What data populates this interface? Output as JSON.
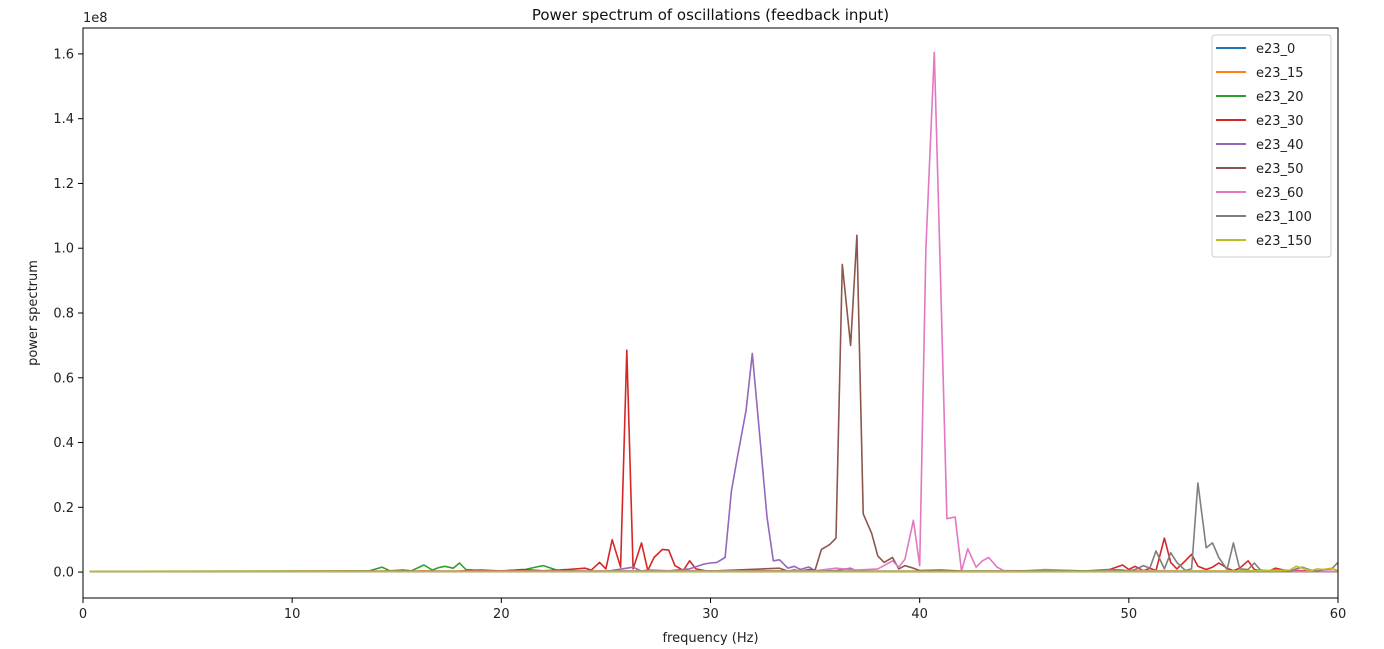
{
  "chart_data": {
    "type": "line",
    "title": "Power spectrum of oscillations (feedback input)",
    "xlabel": "frequency (Hz)",
    "ylabel": "power spectrum",
    "y_scale_label": "1e8",
    "xlim": [
      0,
      60
    ],
    "ylim": [
      -0.08,
      1.68
    ],
    "xticks": [
      0,
      10,
      20,
      30,
      40,
      50,
      60
    ],
    "yticks": [
      0.0,
      0.2,
      0.4,
      0.6,
      0.8,
      1.0,
      1.2,
      1.4,
      1.6
    ],
    "ytick_labels": [
      "0.0",
      "0.2",
      "0.4",
      "0.6",
      "0.8",
      "1.0",
      "1.2",
      "1.4",
      "1.6"
    ],
    "grid": false,
    "legend_position": "top-right",
    "series": [
      {
        "name": "e23_0",
        "color": "#1f77b4",
        "x": [
          0.33,
          60
        ],
        "y": [
          0.002,
          0.002
        ]
      },
      {
        "name": "e23_15",
        "color": "#ff7f0e",
        "x": [
          0.33,
          13,
          14,
          15.3,
          15.8,
          16.3,
          17,
          60
        ],
        "y": [
          0.002,
          0.003,
          0.002,
          0.006,
          0.002,
          0.004,
          0.002,
          0.002
        ]
      },
      {
        "name": "e23_20",
        "color": "#2ca02c",
        "x": [
          0.33,
          13,
          13.7,
          14.3,
          14.7,
          15.3,
          15.7,
          16.3,
          16.7,
          17.0,
          17.3,
          17.7,
          18.0,
          18.3,
          19.0,
          20.0,
          21.0,
          21.7,
          22.0,
          22.3,
          22.7,
          23.0,
          23.3,
          23.7,
          24.0,
          60
        ],
        "y": [
          0.002,
          0.003,
          0.004,
          0.015,
          0.003,
          0.006,
          0.004,
          0.022,
          0.006,
          0.014,
          0.018,
          0.012,
          0.028,
          0.008,
          0.005,
          0.004,
          0.006,
          0.016,
          0.02,
          0.014,
          0.005,
          0.008,
          0.004,
          0.003,
          0.002,
          0.002
        ]
      },
      {
        "name": "e23_30",
        "color": "#d62728",
        "x": [
          0.33,
          18,
          19,
          20,
          21,
          22,
          23,
          24,
          24.3,
          24.7,
          25.0,
          25.3,
          25.7,
          26.0,
          26.3,
          26.7,
          27.0,
          27.3,
          27.7,
          28.0,
          28.3,
          28.7,
          29.0,
          29.3,
          29.7,
          30.0,
          31,
          32,
          35,
          40,
          45,
          48,
          49,
          49.7,
          50.0,
          50.3,
          50.7,
          51.0,
          51.3,
          51.7,
          52.0,
          52.3,
          52.7,
          53.0,
          53.3,
          53.7,
          54.0,
          54.3,
          54.7,
          55.0,
          55.3,
          55.7,
          56.0,
          56.3,
          56.7,
          57.0,
          57.3,
          57.7,
          58.0,
          59,
          60
        ],
        "y": [
          0.002,
          0.003,
          0.006,
          0.003,
          0.008,
          0.004,
          0.007,
          0.012,
          0.006,
          0.03,
          0.01,
          0.1,
          0.015,
          0.685,
          0.01,
          0.09,
          0.005,
          0.045,
          0.07,
          0.068,
          0.02,
          0.005,
          0.035,
          0.01,
          0.005,
          0.003,
          0.004,
          0.002,
          0.003,
          0.002,
          0.002,
          0.003,
          0.006,
          0.022,
          0.008,
          0.018,
          0.004,
          0.012,
          0.005,
          0.105,
          0.03,
          0.01,
          0.035,
          0.055,
          0.018,
          0.008,
          0.015,
          0.028,
          0.012,
          0.004,
          0.012,
          0.035,
          0.008,
          0.004,
          0.003,
          0.012,
          0.008,
          0.003,
          0.005,
          0.003,
          0.002
        ]
      },
      {
        "name": "e23_40",
        "color": "#9467bd",
        "x": [
          0.33,
          25,
          26.3,
          26.7,
          27.0,
          28,
          29,
          29.7,
          30.0,
          30.3,
          30.7,
          31.0,
          31.3,
          31.7,
          32.0,
          32.3,
          32.7,
          33.0,
          33.3,
          33.7,
          34.0,
          34.3,
          34.7,
          35.0,
          36,
          36.7,
          37.0,
          60
        ],
        "y": [
          0.002,
          0.002,
          0.015,
          0.003,
          0.006,
          0.004,
          0.01,
          0.025,
          0.028,
          0.03,
          0.045,
          0.25,
          0.36,
          0.5,
          0.675,
          0.46,
          0.17,
          0.035,
          0.038,
          0.012,
          0.018,
          0.008,
          0.016,
          0.004,
          0.005,
          0.012,
          0.003,
          0.002
        ]
      },
      {
        "name": "e23_50",
        "color": "#8c564b",
        "x": [
          0.33,
          30,
          33.3,
          33.7,
          34.0,
          34.3,
          34.7,
          35.0,
          35.3,
          35.7,
          36.0,
          36.3,
          36.7,
          37.0,
          37.3,
          37.7,
          38.0,
          38.3,
          38.7,
          39.0,
          39.3,
          39.7,
          40.0,
          41,
          42,
          60
        ],
        "y": [
          0.002,
          0.003,
          0.012,
          0.003,
          0.006,
          0.003,
          0.008,
          0.006,
          0.07,
          0.085,
          0.105,
          0.95,
          0.7,
          1.04,
          0.18,
          0.12,
          0.05,
          0.03,
          0.045,
          0.01,
          0.02,
          0.012,
          0.005,
          0.006,
          0.003,
          0.002
        ]
      },
      {
        "name": "e23_60",
        "color": "#e377c2",
        "x": [
          0.33,
          35,
          36,
          37,
          38,
          38.3,
          38.7,
          39.0,
          39.3,
          39.7,
          40.0,
          40.3,
          40.7,
          41.0,
          41.3,
          41.7,
          42.0,
          42.3,
          42.7,
          43.0,
          43.3,
          43.7,
          44.0,
          45,
          46,
          48,
          50,
          52,
          60
        ],
        "y": [
          0.002,
          0.004,
          0.012,
          0.006,
          0.01,
          0.02,
          0.035,
          0.015,
          0.04,
          0.16,
          0.02,
          1.0,
          1.605,
          0.9,
          0.165,
          0.17,
          0.003,
          0.072,
          0.015,
          0.035,
          0.045,
          0.015,
          0.005,
          0.004,
          0.008,
          0.003,
          0.005,
          0.004,
          0.002
        ]
      },
      {
        "name": "e23_100",
        "color": "#7f7f7f",
        "x": [
          0.33,
          44,
          46,
          48,
          49,
          49.7,
          50.0,
          50.3,
          50.7,
          51.0,
          51.3,
          51.7,
          52.0,
          52.3,
          52.7,
          53.0,
          53.3,
          53.7,
          54.0,
          54.3,
          54.7,
          55.0,
          55.3,
          55.7,
          56.0,
          56.3,
          56.7,
          57.0,
          57.3,
          57.7,
          58.0,
          58.3,
          58.7,
          59.0,
          59.3,
          59.7,
          60.0
        ],
        "y": [
          0.002,
          0.003,
          0.005,
          0.004,
          0.008,
          0.006,
          0.003,
          0.008,
          0.02,
          0.012,
          0.065,
          0.01,
          0.06,
          0.03,
          0.005,
          0.01,
          0.275,
          0.075,
          0.09,
          0.045,
          0.008,
          0.09,
          0.01,
          0.008,
          0.028,
          0.006,
          0.004,
          0.008,
          0.005,
          0.002,
          0.01,
          0.015,
          0.006,
          0.002,
          0.008,
          0.01,
          0.03
        ]
      },
      {
        "name": "e23_150",
        "color": "#bcbd22",
        "x": [
          0.33,
          50,
          55,
          57.7,
          58.0,
          58.3,
          58.7,
          59.0,
          59.3,
          59.7,
          60.0
        ],
        "y": [
          0.002,
          0.002,
          0.003,
          0.006,
          0.018,
          0.012,
          0.004,
          0.01,
          0.008,
          0.012,
          0.004
        ]
      }
    ]
  }
}
